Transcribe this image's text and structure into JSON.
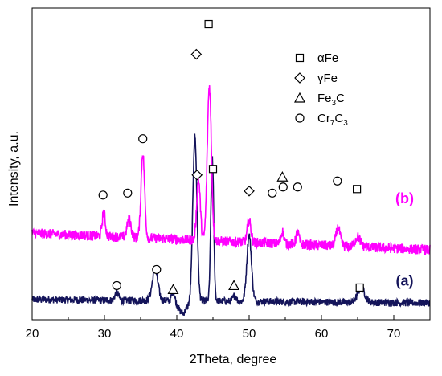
{
  "chart_data": {
    "type": "line",
    "xlabel": "2Theta, degree",
    "ylabel": "Intensity, a.u.",
    "xlim": [
      20,
      75
    ],
    "xticks": [
      20,
      30,
      40,
      50,
      60,
      70
    ],
    "grid": false,
    "legend_position": "top-right",
    "legend": [
      {
        "symbol": "square",
        "label_main": "αFe",
        "label_sub": []
      },
      {
        "symbol": "diamond",
        "label_main": "γFe",
        "label_sub": []
      },
      {
        "symbol": "triangle",
        "label_main": "Fe3C",
        "label_parts": [
          [
            "Fe",
            ""
          ],
          [
            "3",
            "sub"
          ],
          [
            "C",
            ""
          ]
        ]
      },
      {
        "symbol": "circle",
        "label_main": "Cr7C3",
        "label_parts": [
          [
            "Cr",
            ""
          ],
          [
            "7",
            "sub"
          ],
          [
            "C",
            ""
          ],
          [
            "3",
            "sub"
          ]
        ]
      }
    ],
    "series": [
      {
        "name": "(a)",
        "color": "#14145a",
        "baseline": 0.1,
        "noise": 0.018,
        "slope": -0.0003,
        "peaks": [
          {
            "x": 31.7,
            "h": 0.04,
            "w": 0.35
          },
          {
            "x": 37.0,
            "h": 0.15,
            "w": 0.55
          },
          {
            "x": 39.5,
            "h": 0.05,
            "w": 0.3
          },
          {
            "x": 42.5,
            "h": 0.82,
            "w": 0.4
          },
          {
            "x": 44.9,
            "h": 0.72,
            "w": 0.28
          },
          {
            "x": 48.0,
            "h": 0.03,
            "w": 0.3
          },
          {
            "x": 50.0,
            "h": 0.33,
            "w": 0.45
          },
          {
            "x": 65.5,
            "h": 0.07,
            "w": 0.7
          }
        ],
        "dip": {
          "x": 40.8,
          "h": 0.06,
          "w": 0.8
        },
        "markers": [
          {
            "x": 31.7,
            "y": 0.17,
            "symbol": "circle"
          },
          {
            "x": 37.2,
            "y": 0.25,
            "symbol": "circle"
          },
          {
            "x": 39.5,
            "y": 0.15,
            "symbol": "triangle"
          },
          {
            "x": 47.9,
            "y": 0.17,
            "symbol": "triangle"
          },
          {
            "x": 65.3,
            "y": 0.16,
            "symbol": "square"
          }
        ],
        "label": "(a)",
        "label_x": 71.5,
        "label_y": 0.17
      },
      {
        "name": "(b)",
        "color": "#ff00ff",
        "baseline": 0.43,
        "noise": 0.025,
        "slope": -0.0015,
        "peaks": [
          {
            "x": 29.9,
            "h": 0.12,
            "w": 0.3
          },
          {
            "x": 33.4,
            "h": 0.09,
            "w": 0.4
          },
          {
            "x": 35.3,
            "h": 0.42,
            "w": 0.35
          },
          {
            "x": 43.0,
            "h": 0.3,
            "w": 0.35
          },
          {
            "x": 44.5,
            "h": 0.77,
            "w": 0.4
          },
          {
            "x": 50.0,
            "h": 0.11,
            "w": 0.35
          },
          {
            "x": 54.6,
            "h": 0.06,
            "w": 0.3
          },
          {
            "x": 56.7,
            "h": 0.06,
            "w": 0.3
          },
          {
            "x": 62.3,
            "h": 0.09,
            "w": 0.4
          },
          {
            "x": 65.0,
            "h": 0.05,
            "w": 0.5
          }
        ],
        "dip": {
          "x": 40.0,
          "h": 0.0,
          "w": 1.0
        },
        "markers": [
          {
            "x": 29.8,
            "y": 0.62,
            "symbol": "circle"
          },
          {
            "x": 33.2,
            "y": 0.63,
            "symbol": "circle"
          },
          {
            "x": 35.3,
            "y": 0.9,
            "symbol": "circle"
          },
          {
            "x": 42.7,
            "y": 1.32,
            "symbol": "diamond"
          },
          {
            "x": 44.4,
            "y": 1.47,
            "symbol": "square"
          },
          {
            "x": 42.8,
            "y": 0.72,
            "symbol": "diamond"
          },
          {
            "x": 45.0,
            "y": 0.75,
            "symbol": "square"
          },
          {
            "x": 50.0,
            "y": 0.64,
            "symbol": "diamond"
          },
          {
            "x": 53.2,
            "y": 0.63,
            "symbol": "circle"
          },
          {
            "x": 54.6,
            "y": 0.71,
            "symbol": "triangle"
          },
          {
            "x": 54.7,
            "y": 0.66,
            "symbol": "circle"
          },
          {
            "x": 56.7,
            "y": 0.66,
            "symbol": "circle"
          },
          {
            "x": 62.2,
            "y": 0.69,
            "symbol": "circle"
          },
          {
            "x": 64.9,
            "y": 0.65,
            "symbol": "square"
          }
        ],
        "label": "(b)",
        "label_x": 71.5,
        "label_y": 0.58
      }
    ]
  }
}
